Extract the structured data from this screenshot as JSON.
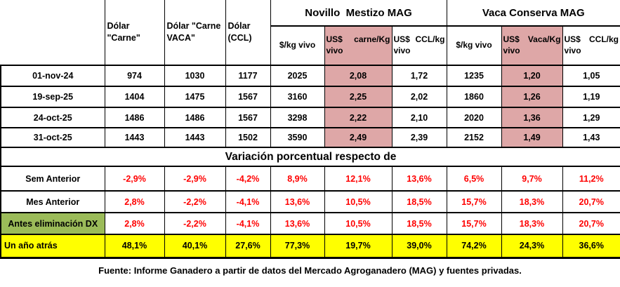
{
  "colors": {
    "pink_fill": "#DEA7A7",
    "green_fill": "#9BBB59",
    "yellow_fill": "#FFFF00",
    "negative_positive_pct_text": "#FF0000",
    "border": "#000000"
  },
  "header": {
    "dolar_carne": "Dólar \"Carne\"",
    "dolar_vaca": "Dólar \"Carne VACA\"",
    "dolar_ccl": "Dólar (CCL)",
    "group_novillo": "Novillo  Mestizo MAG",
    "group_vaca": "Vaca Conserva MAG",
    "sub": [
      "$/kg vivo",
      "US$ carne/Kg vivo",
      "US$ CCL/kg vivo",
      "$/kg vivo",
      "US$ Vaca/Kg vivo",
      "US$ CCL/kg vivo"
    ]
  },
  "price_rows": [
    {
      "label": "01-nov-24",
      "values": [
        "974",
        "1030",
        "1177",
        "2025",
        "2,08",
        "1,72",
        "1235",
        "1,20",
        "1,05"
      ]
    },
    {
      "label": "19-sep-25",
      "values": [
        "1404",
        "1475",
        "1567",
        "3160",
        "2,25",
        "2,02",
        "1860",
        "1,26",
        "1,19"
      ]
    },
    {
      "label": "24-oct-25",
      "values": [
        "1486",
        "1486",
        "1567",
        "3298",
        "2,22",
        "2,10",
        "2020",
        "1,36",
        "1,29"
      ]
    },
    {
      "label": "31-oct-25",
      "values": [
        "1443",
        "1443",
        "1502",
        "3590",
        "2,49",
        "2,39",
        "2152",
        "1,49",
        "1,43"
      ]
    }
  ],
  "variation_title": "Variación porcentual respecto de",
  "variation_rows": [
    {
      "label": "Sem Anterior",
      "style": "plain",
      "values": [
        "-2,9%",
        "-2,9%",
        "-4,2%",
        "8,9%",
        "12,1%",
        "13,6%",
        "6,5%",
        "9,7%",
        "11,2%"
      ]
    },
    {
      "label": "Mes Anterior",
      "style": "plain",
      "values": [
        "2,8%",
        "-2,2%",
        "-4,1%",
        "13,6%",
        "10,5%",
        "18,5%",
        "15,7%",
        "18,3%",
        "20,7%"
      ]
    },
    {
      "label": "Antes eliminación DX",
      "style": "green-label",
      "values": [
        "2,8%",
        "-2,2%",
        "-4,1%",
        "13,6%",
        "10,5%",
        "18,5%",
        "15,7%",
        "18,3%",
        "20,7%"
      ]
    },
    {
      "label": "Un año atrás",
      "style": "yellow-row",
      "values": [
        "48,1%",
        "40,1%",
        "27,6%",
        "77,3%",
        "19,7%",
        "39,0%",
        "74,2%",
        "24,3%",
        "36,6%"
      ]
    }
  ],
  "footer": "Fuente: Informe Ganadero a partir de datos del Mercado Agroganadero (MAG) y fuentes privadas."
}
